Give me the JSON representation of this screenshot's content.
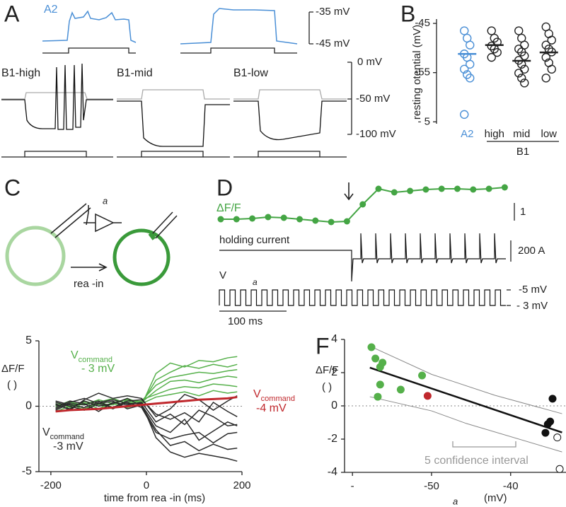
{
  "panels": {
    "A": {
      "label": "A",
      "a2": "A2",
      "scale_top": "-35 mV",
      "scale_bottom": "-45 mV",
      "traces": [
        "B1-high",
        "B1-mid",
        "B1-low"
      ],
      "scale_v": [
        "0 mV",
        "-50 mV",
        "-100 mV"
      ]
    },
    "C": {
      "label": "C",
      "amp": "a",
      "arrow": "rea  -in"
    },
    "D": {
      "label": "D",
      "dff": "ΔF/F",
      "scale_dff": "1",
      "holding": "holding current",
      "scale_i": "200  A",
      "v": "V",
      "v_sub": "a",
      "v_hi": "-5  mV",
      "v_lo": "-  3 mV",
      "time_bar": "100 ms",
      "color": "#44a544",
      "trace_values": [
        0,
        0,
        0.04,
        0.12,
        0.08,
        0,
        -0.08,
        -0.16,
        -0.12,
        0.84,
        1.72,
        1.52,
        1.6,
        1.68,
        1.72,
        1.72,
        1.68,
        1.72,
        1.8
      ]
    }
  },
  "chart_data": [
    {
      "type": "strip",
      "panel_label": "B",
      "ylabel": "resting  otential (mV)",
      "ylim": [
        -65.1,
        -44.7
      ],
      "yticks": [
        -45,
        -55,
        {
          "value": -65,
          "label": "- 5"
        }
      ],
      "categories": [
        "A2",
        "high",
        "mid",
        "low"
      ],
      "group_label": "B1",
      "colors": [
        "#4a8fd6",
        "#222222",
        "#222222",
        "#222222"
      ],
      "values": [
        [
          -46.5,
          -48.0,
          -49.4,
          -51.2,
          -51.9,
          -53.3,
          -54.3,
          -55.4,
          -56.1,
          -63.5
        ],
        [
          -46.5,
          -48.0,
          -48.8,
          -49.6,
          -50.2,
          -50.9,
          -51.9
        ],
        [
          -46.5,
          -48.0,
          -49.4,
          -50.2,
          -50.8,
          -51.6,
          -52.5,
          -53.3,
          -54.3,
          -55.1,
          -56.1,
          -57.1
        ],
        [
          -45.7,
          -47.1,
          -48.4,
          -49.4,
          -50.2,
          -50.8,
          -51.9,
          -53.0,
          -54.3,
          -56.1
        ]
      ],
      "means": [
        -51.2,
        -49.4,
        -52.6,
        -50.9
      ]
    },
    {
      "type": "line",
      "xlabel": "time from rea -in (ms)",
      "ylabel": "ΔF/F",
      "ylabel_unit": "(   )",
      "xlim": [
        -225,
        200
      ],
      "xticks": [
        -200,
        0,
        200
      ],
      "ylim": [
        -5,
        5
      ],
      "yticks": [
        5,
        0,
        -5
      ],
      "x": [
        -190,
        -160,
        -130,
        -100,
        -70,
        -40,
        -10,
        20,
        50,
        80,
        110,
        140,
        170,
        190
      ],
      "series": [
        {
          "color": "#55b04a",
          "values": [
            0.2,
            -0.3,
            0.4,
            0.1,
            -0.2,
            0.5,
            0.1,
            2.5,
            3.3,
            3.0,
            3.5,
            3.4,
            3.7,
            3.8
          ]
        },
        {
          "color": "#55b04a",
          "values": [
            -0.2,
            0.3,
            0.1,
            0.5,
            0.2,
            -0.1,
            0.2,
            2.0,
            2.6,
            3.1,
            2.9,
            3.2,
            3.0,
            3.2
          ]
        },
        {
          "color": "#55b04a",
          "values": [
            0.1,
            0.2,
            -0.3,
            0.3,
            0.6,
            0.2,
            0.4,
            1.6,
            2.2,
            2.4,
            2.6,
            2.5,
            2.7,
            2.8
          ]
        },
        {
          "color": "#55b04a",
          "values": [
            -0.4,
            0.0,
            0.3,
            -0.2,
            0.3,
            0.5,
            0.3,
            1.2,
            1.9,
            2.0,
            1.8,
            2.1,
            2.3,
            2.2
          ]
        },
        {
          "color": "#55b04a",
          "values": [
            0.3,
            -0.1,
            0.2,
            0.4,
            -0.1,
            0.3,
            0.5,
            0.9,
            1.3,
            1.5,
            1.4,
            1.7,
            1.6,
            1.5
          ]
        },
        {
          "color": "#55b04a",
          "values": [
            0.0,
            0.4,
            -0.2,
            0.2,
            0.1,
            0.6,
            0.2,
            0.7,
            0.9,
            1.1,
            0.8,
            1.2,
            1.0,
            1.1
          ]
        },
        {
          "color": "#2b2b2b",
          "values": [
            0.2,
            -0.3,
            0.5,
            1.0,
            0.6,
            0.8,
            0.6,
            -0.8,
            -0.2,
            0.9,
            0.5,
            -0.3,
            0.4,
            0.8
          ]
        },
        {
          "color": "#2b2b2b",
          "values": [
            -0.1,
            0.4,
            0.2,
            -0.4,
            0.3,
            0.1,
            0.3,
            -1.2,
            -0.6,
            -1.4,
            -0.3,
            -0.8,
            -1.5,
            -1.4
          ]
        },
        {
          "color": "#2b2b2b",
          "values": [
            0.3,
            0.0,
            -0.3,
            0.2,
            0.4,
            -0.2,
            0.1,
            -1.5,
            -2.0,
            -1.0,
            -2.6,
            -1.9,
            -1.2,
            -1.5
          ]
        },
        {
          "color": "#2b2b2b",
          "values": [
            -0.3,
            0.2,
            0.1,
            0.4,
            -0.2,
            0.3,
            -0.1,
            -2.0,
            -2.5,
            -2.2,
            -2.0,
            -2.8,
            -2.1,
            -2.0
          ]
        },
        {
          "color": "#2b2b2b",
          "values": [
            0.1,
            -0.2,
            0.4,
            0.0,
            0.2,
            0.6,
            0.0,
            -1.8,
            -3.0,
            -2.7,
            -3.4,
            -2.9,
            -3.3,
            -3.2
          ]
        },
        {
          "color": "#2b2b2b",
          "values": [
            0.4,
            0.1,
            -0.1,
            0.3,
            0.5,
            0.2,
            0.2,
            -2.4,
            -3.5,
            -3.9,
            -3.6,
            -3.8,
            -4.0,
            -4.2
          ]
        },
        {
          "color": "#2b2b2b",
          "values": [
            -0.2,
            0.3,
            0.6,
            0.2,
            -0.1,
            0.4,
            0.5,
            -0.6,
            -1.0,
            -0.5,
            -1.2,
            0.3,
            -0.4,
            -0.8
          ]
        },
        {
          "color": "#c0282d",
          "width": 3,
          "values": [
            -0.4,
            -0.3,
            -0.25,
            -0.2,
            -0.1,
            0.0,
            0.1,
            0.2,
            0.3,
            0.4,
            0.5,
            0.55,
            0.6,
            0.7
          ]
        }
      ],
      "annotations": [
        {
          "text": "V",
          "sub": "command",
          "line2": "-  3 mV",
          "color": "#55b04a"
        },
        {
          "text": "V",
          "sub": "command",
          "line2": "-4   mV",
          "color": "#c0282d"
        },
        {
          "text": "V",
          "sub": "command",
          "line2": "-3   mV",
          "color": "#2b2b2b"
        }
      ]
    },
    {
      "type": "scatter",
      "panel_label": "F",
      "xlabel": "a",
      "xlabel_unit": "(mV)",
      "ylabel": "ΔF/F",
      "ylabel_unit": "(  )",
      "xlim": [
        -61,
        -33
      ],
      "xticks": [
        {
          "value": -60,
          "label": "-"
        },
        -50,
        -40
      ],
      "ylim": [
        -4,
        4
      ],
      "yticks": [
        4,
        2,
        0,
        -2,
        -4
      ],
      "series": [
        {
          "color": "#55b04a",
          "x": [
            -57.6,
            -57.1,
            -56.5,
            -56.2,
            -56.5,
            -56.8,
            -53.9,
            -51.2
          ],
          "y": [
            3.53,
            2.85,
            2.34,
            2.6,
            1.28,
            0.55,
            0.98,
            1.83
          ]
        },
        {
          "color": "#c0282d",
          "x": [
            -50.5
          ],
          "y": [
            0.6
          ]
        },
        {
          "color": "#111111",
          "x": [
            -34.7,
            -35.0,
            -35.3,
            -35.6
          ],
          "y": [
            0.43,
            -0.94,
            -1.1,
            -1.62
          ]
        },
        {
          "color": "#111111",
          "open": true,
          "x": [
            -34.1,
            -33.8
          ],
          "y": [
            -1.9,
            -3.8
          ]
        }
      ],
      "fit": {
        "x": [
          -57.8,
          -33.5
        ],
        "y": [
          2.3,
          -1.6
        ]
      },
      "ci_upper": {
        "x": [
          -57.8,
          -50,
          -42,
          -33.5
        ],
        "y": [
          3.6,
          1.9,
          0.64,
          -0.47
        ]
      },
      "ci_lower": {
        "x": [
          -57.8,
          -50,
          -45.6,
          -33.5
        ],
        "y": [
          0.55,
          -0.3,
          -1.06,
          -2.77
        ]
      },
      "ci_label": "5   confidence interval"
    }
  ]
}
